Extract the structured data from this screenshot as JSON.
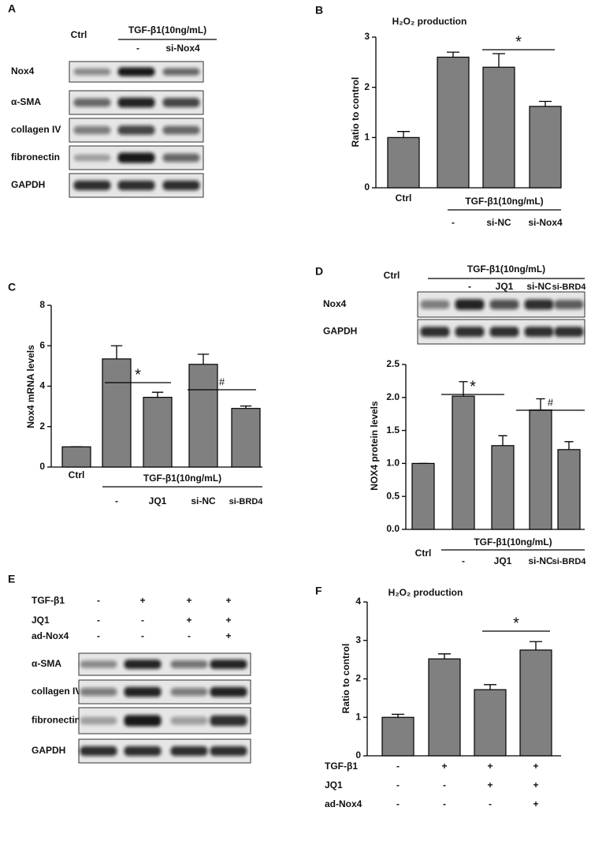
{
  "chart_data": [
    {
      "type": "bar",
      "panel": "B",
      "title": "H₂O₂ production",
      "y_label": "Ratio to control",
      "categories": [
        "Ctrl",
        "-",
        "si-NC",
        "si-Nox4"
      ],
      "group_label": "TGF-β1(10ng/mL)",
      "values": [
        1.0,
        2.6,
        2.4,
        1.62
      ],
      "errors": [
        0.12,
        0.1,
        0.27,
        0.1
      ],
      "ylim": [
        0,
        3
      ],
      "yticks": [
        0,
        1,
        2,
        3
      ],
      "color": "#808080",
      "annotations": [
        "*"
      ]
    },
    {
      "type": "bar",
      "panel": "C",
      "y_label": "Nox4 mRNA levels",
      "categories": [
        "Ctrl",
        "-",
        "JQ1",
        "si-NC",
        "si-BRD4"
      ],
      "group_label": "TGF-β1(10ng/mL)",
      "values": [
        1.0,
        5.35,
        3.45,
        5.08,
        2.9
      ],
      "errors": [
        0,
        0.65,
        0.25,
        0.5,
        0.12
      ],
      "ylim": [
        0,
        8
      ],
      "yticks": [
        0,
        2,
        4,
        6,
        8
      ],
      "color": "#808080",
      "annotations": [
        "*",
        "#"
      ]
    },
    {
      "type": "bar",
      "y_label": "NOX4 protein levels",
      "categories": [
        "Ctrl",
        "-",
        "JQ1",
        "si-NC",
        "si-BRD4"
      ],
      "group_label": "TGF-β1(10ng/mL)",
      "values": [
        1.0,
        2.02,
        1.27,
        1.81,
        1.21
      ],
      "errors": [
        0,
        0.22,
        0.15,
        0.17,
        0.12
      ],
      "ylim": [
        0,
        2.5
      ],
      "yticks": [
        {
          "value": 0,
          "label": "0.0"
        },
        0.5,
        {
          "value": 1,
          "label": "1.0"
        },
        1.5,
        {
          "value": 2,
          "label": "2.0"
        },
        2.5
      ],
      "color": "#808080",
      "annotations": [
        "*",
        "#"
      ]
    },
    {
      "type": "bar",
      "panel": "F",
      "title": "H₂O₂ production",
      "y_label": "Ratio to control",
      "conditions": [
        {
          "name": "TGF-β1",
          "values": [
            "-",
            "+",
            "+",
            "+"
          ]
        },
        {
          "name": "JQ1",
          "values": [
            "-",
            "-",
            "+",
            "+"
          ]
        },
        {
          "name": "ad-Nox4",
          "values": [
            "-",
            "-",
            "-",
            "+"
          ]
        }
      ],
      "values": [
        1.0,
        2.52,
        1.72,
        2.75
      ],
      "errors": [
        0.08,
        0.13,
        0.13,
        0.22
      ],
      "ylim": [
        0,
        4
      ],
      "yticks": [
        0,
        1,
        2,
        3,
        4
      ],
      "color": "#808080",
      "annotations": [
        "*"
      ]
    }
  ],
  "blots": [
    {
      "panel": "A",
      "lanes": [
        "Ctrl",
        "-",
        "si-Nox4"
      ],
      "group_label": "TGF-β1(10ng/mL)",
      "rows": [
        "Nox4",
        "α-SMA",
        "collagen IV",
        "fibronectin",
        "GAPDH"
      ]
    },
    {
      "panel": "D",
      "lanes": [
        "Ctrl",
        "-",
        "JQ1",
        "si-NC",
        "si-BRD4"
      ],
      "group_label": "TGF-β1(10ng/mL)",
      "rows": [
        "Nox4",
        "GAPDH"
      ]
    },
    {
      "panel": "E",
      "conditions": [
        {
          "name": "TGF-β1",
          "values": [
            "-",
            "+",
            "+",
            "+"
          ]
        },
        {
          "name": "JQ1",
          "values": [
            "-",
            "-",
            "+",
            "+"
          ]
        },
        {
          "name": "ad-Nox4",
          "values": [
            "-",
            "-",
            "-",
            "+"
          ]
        }
      ],
      "rows": [
        "α-SMA",
        "collagen IV",
        "fibronectin",
        "GAPDH"
      ]
    }
  ]
}
